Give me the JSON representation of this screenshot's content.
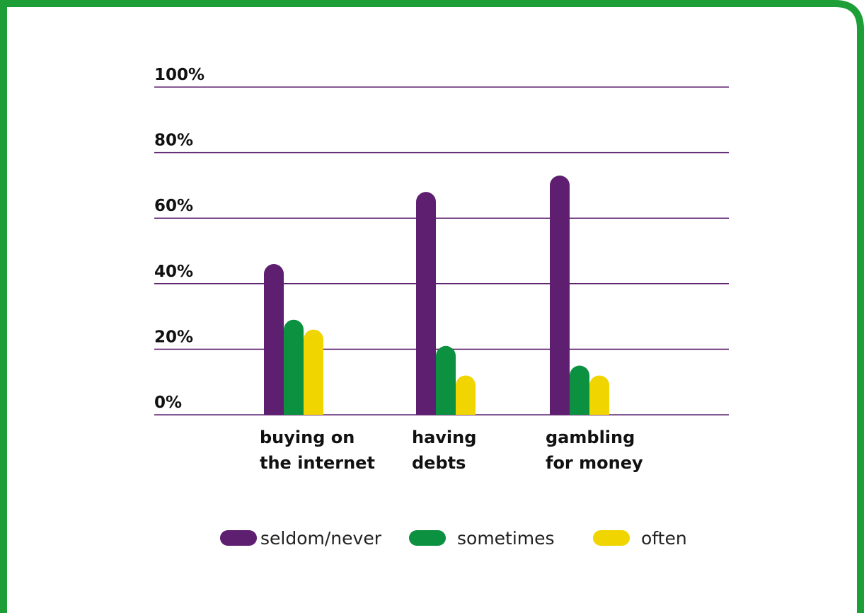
{
  "colors": {
    "frame": "#1e9e37",
    "gridline": "#5e2470",
    "series": [
      "#5e1f71",
      "#0b9140",
      "#f0d500"
    ]
  },
  "chart_data": {
    "type": "bar",
    "title": "",
    "xlabel": "",
    "ylabel": "",
    "ylim": [
      0,
      100
    ],
    "yticks": [
      "0%",
      "20%",
      "40%",
      "60%",
      "80%",
      "100%"
    ],
    "ytick_values": [
      0,
      20,
      40,
      60,
      80,
      100
    ],
    "grid": true,
    "legend_position": "bottom",
    "categories": [
      {
        "lines": [
          "buying on",
          "the internet"
        ]
      },
      {
        "lines": [
          "having",
          "debts"
        ]
      },
      {
        "lines": [
          "gambling",
          "for money"
        ]
      }
    ],
    "series": [
      {
        "name": "seldom/never",
        "values": [
          46,
          68,
          73
        ]
      },
      {
        "name": "sometimes",
        "values": [
          29,
          21,
          15
        ]
      },
      {
        "name": "often",
        "values": [
          26,
          12,
          12
        ]
      }
    ]
  }
}
